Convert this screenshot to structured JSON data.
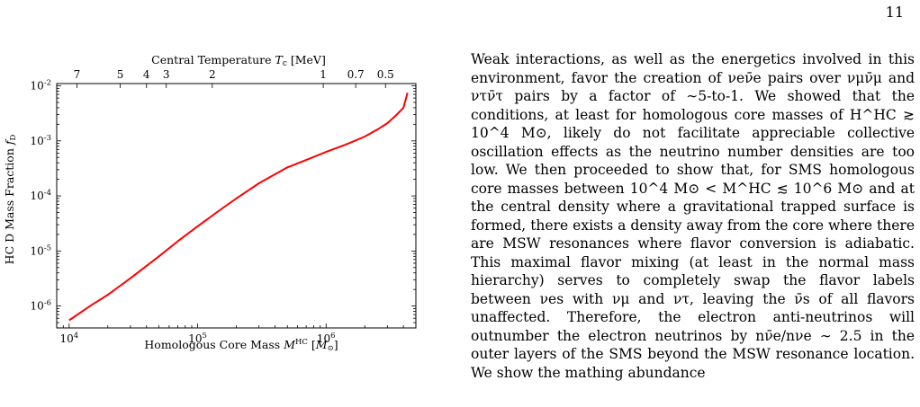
{
  "page": {
    "number": "11"
  },
  "figure": {
    "chart_data": {
      "type": "line",
      "title": "",
      "xlabel": "Homologous Core Mass M^HC [M⊙]",
      "ylabel": "HC D Mass Fraction f_D",
      "top_axis_label": "Central Temperature T_c [MeV]",
      "x_scale": "log",
      "y_scale": "log",
      "xlim": [
        8000,
        5000000
      ],
      "ylim": [
        4e-07,
        0.011
      ],
      "x_tick_labels": [
        "10^4",
        "10^5",
        "10^6"
      ],
      "x_tick_values": [
        10000,
        100000,
        1000000
      ],
      "y_tick_labels": [
        "10^-6",
        "10^-5",
        "10^-4",
        "10^-3",
        "10^-2"
      ],
      "y_tick_values": [
        1e-06,
        1e-05,
        0.0001,
        0.001,
        0.01
      ],
      "top_tick_labels": [
        "7",
        "5",
        "4",
        "3",
        "2",
        "1",
        "0.7",
        "0.5"
      ],
      "top_tick_mass_values": [
        11500,
        25000,
        40000,
        57000,
        130000,
        950000,
        1700000,
        2900000
      ],
      "grid": false,
      "series": [
        {
          "color": "#ff0000",
          "x": [
            10000,
            15000,
            20000,
            30000,
            50000,
            70000,
            100000,
            150000,
            200000,
            300000,
            500000,
            700000,
            1000000,
            1500000,
            2000000,
            2500000,
            3000000,
            3500000,
            4000000,
            4300000
          ],
          "y": [
            5.5e-07,
            1.05e-06,
            1.6e-06,
            3.2e-06,
            8e-06,
            1.5e-05,
            2.8e-05,
            5.6e-05,
            9e-05,
            0.00017,
            0.00033,
            0.00045,
            0.00063,
            0.0009,
            0.0012,
            0.0016,
            0.0021,
            0.0029,
            0.004,
            0.0075
          ]
        }
      ]
    },
    "axis_labels": {
      "x_main": "Homologous Core Mass ",
      "x_sym": "M",
      "x_sup": "HC",
      "x_unit_open": " [",
      "x_unit": "M",
      "x_unit_sub": "⊙",
      "x_unit_close": "]",
      "y_main": "HC D Mass Fraction ",
      "y_sym": "f",
      "y_sub": "D",
      "top_main": "Central Temperature ",
      "top_sym": "T",
      "top_sub": "c",
      "top_unit": " [MeV]"
    },
    "tick_base": "10"
  },
  "body": {
    "paragraph": "Weak interactions, as well as the energetics involved in this environment, favor the creation of νeν̄e pairs over νμν̄μ and ντν̄τ pairs by a factor of ∼5-to-1. We showed that the conditions, at least for homologous core masses of H^HC ≳ 10^4 M⊙, likely do not facilitate appreciable collective oscillation effects as the neutrino number densities are too low. We then proceeded to show that, for SMS homologous core masses between 10^4 M⊙ < M^HC ≲ 10^6 M⊙ and at the central density where a gravitational trapped surface is formed, there exists a density away from the core where there are MSW resonances where flavor conversion is adiabatic. This maximal flavor mixing (at least in the normal mass hierarchy) serves to completely swap the flavor labels between νes with νμ and ντ, leaving the ν̄s of all flavors unaffected. Therefore, the electron anti-neutrinos will outnumber the electron neutrinos by nν̄e/nνe ∼ 2.5 in the outer layers of the SMS beyond the MSW resonance location. We show the mathing abundance"
  }
}
